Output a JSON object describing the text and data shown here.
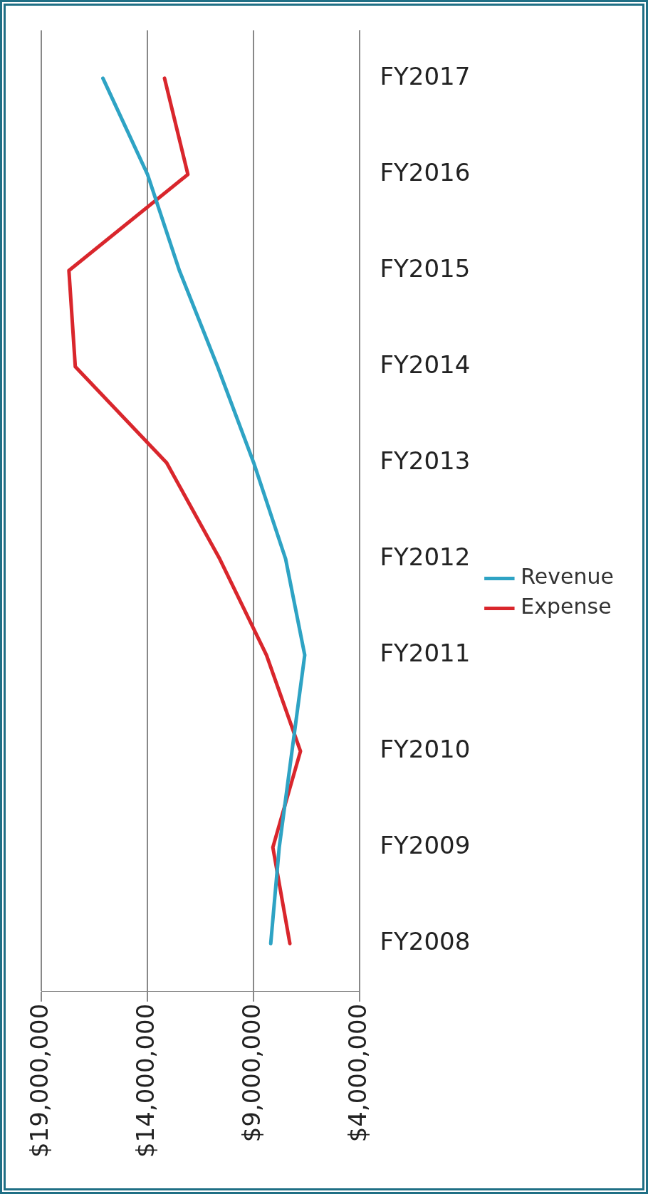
{
  "chart_data": {
    "type": "line",
    "orientation": "horizontal",
    "categories": [
      "FY2017",
      "FY2016",
      "FY2015",
      "FY2014",
      "FY2013",
      "FY2012",
      "FY2011",
      "FY2010",
      "FY2009",
      "FY2008"
    ],
    "series": [
      {
        "name": "Revenue",
        "color": "#2ea3c4",
        "values": [
          16100000,
          14000000,
          12500000,
          10700000,
          9000000,
          7500000,
          6600000,
          7200000,
          7800000,
          8200000
        ]
      },
      {
        "name": "Expense",
        "color": "#d9262c",
        "values": [
          13200000,
          12100000,
          17700000,
          17400000,
          13100000,
          10600000,
          8400000,
          6800000,
          8100000,
          7300000
        ]
      }
    ],
    "xlim": [
      19000000,
      4000000
    ],
    "xticks": [
      {
        "value": 19000000,
        "label": "$19,000,000"
      },
      {
        "value": 14000000,
        "label": "$14,000,000"
      },
      {
        "value": 9000000,
        "label": "$9,000,000"
      },
      {
        "value": 4000000,
        "label": "$4,000,000"
      }
    ],
    "grid": "x",
    "legend": "right",
    "marker": "none",
    "line_style": "solid"
  }
}
